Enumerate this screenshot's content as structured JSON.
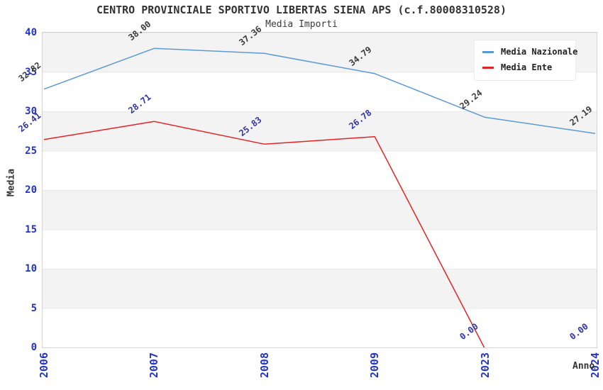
{
  "page": {
    "background": "#ffffff"
  },
  "chart_data": {
    "type": "line",
    "title": "CENTRO PROVINCIALE SPORTIVO LIBERTAS SIENA APS (c.f.80008310528)",
    "subtitle": "Media Importi",
    "xlabel": "Anno",
    "ylabel": "Media",
    "categories": [
      "2006",
      "2007",
      "2008",
      "2009",
      "2023",
      "2024"
    ],
    "series": [
      {
        "name": "Media Nazionale",
        "color": "#5b9bd5",
        "label_color": "#3a3a3a",
        "values": [
          32.82,
          38.0,
          37.36,
          34.79,
          29.24,
          27.19
        ]
      },
      {
        "name": "Media Ente",
        "color": "#e62222",
        "label_color": "#3333aa",
        "values": [
          26.41,
          28.71,
          25.83,
          26.78,
          0.0,
          0.0
        ]
      }
    ],
    "ylim": [
      0,
      40
    ],
    "yticks": [
      0,
      5,
      10,
      15,
      20,
      25,
      30,
      35,
      40
    ],
    "legend": {
      "position": "top-right",
      "entries": [
        "Media Nazionale",
        "Media Ente"
      ]
    },
    "grid": "alternating-horizontal-bands",
    "band_colors": [
      "#f3f3f3",
      "#ffffff"
    ],
    "axis_tick_color": "#2233cc",
    "value_label_format": "0.00"
  }
}
